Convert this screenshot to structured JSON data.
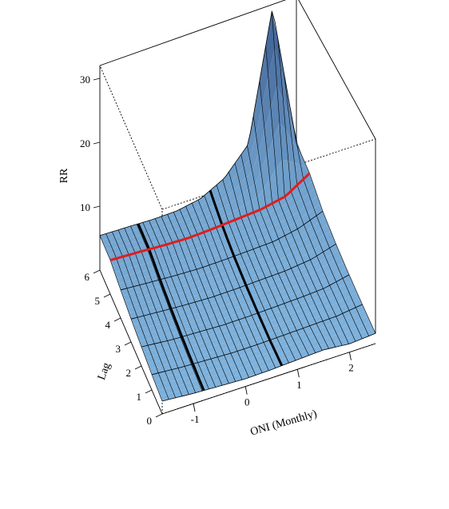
{
  "chart_data": {
    "type": "surface",
    "title": "",
    "xlabel": "ONI  (Monthly)",
    "ylabel": "Lag",
    "zlabel": "RR",
    "x_ticks": [
      "-1",
      "0",
      "1",
      "2"
    ],
    "y_ticks": [
      "0",
      "1",
      "2",
      "3",
      "4",
      "5",
      "6"
    ],
    "z_ticks": [
      "10",
      "20",
      "30"
    ],
    "xlim": [
      -1.6,
      2.5
    ],
    "ylim": [
      0,
      6
    ],
    "zlim": [
      0,
      32
    ],
    "surface": {
      "oni": [
        -1.6,
        -1.0,
        -0.5,
        0,
        0.5,
        1.0,
        1.5,
        2.0,
        2.5
      ],
      "lag": [
        0,
        1,
        2,
        3,
        4,
        5,
        6
      ],
      "rr": [
        [
          2.0,
          1.6,
          1.4,
          1.2,
          1.3,
          1.5,
          1.7,
          1.3,
          1.6
        ],
        [
          2.4,
          2.0,
          1.8,
          1.6,
          1.6,
          1.7,
          1.8,
          1.9,
          2.4
        ],
        [
          3.0,
          2.5,
          2.3,
          2.1,
          2.1,
          2.2,
          2.3,
          2.5,
          3.3
        ],
        [
          3.6,
          3.2,
          2.9,
          2.7,
          2.7,
          2.8,
          2.9,
          3.3,
          4.4
        ],
        [
          4.4,
          4.0,
          3.7,
          3.5,
          3.5,
          3.6,
          3.7,
          4.4,
          5.8
        ],
        [
          5.3,
          5.0,
          4.7,
          4.5,
          4.6,
          4.8,
          5.0,
          5.7,
          8.0
        ],
        [
          5.4,
          5.2,
          5.0,
          5.0,
          5.6,
          7.5,
          11.5,
          31.5,
          9.0
        ]
      ]
    },
    "highlight_lag": {
      "lag": 5,
      "color": "#dd1f1f"
    },
    "highlight_oni": [
      -0.8,
      0.7
    ],
    "surface_color": "#7fb3dd",
    "grid_color": "#000000"
  }
}
